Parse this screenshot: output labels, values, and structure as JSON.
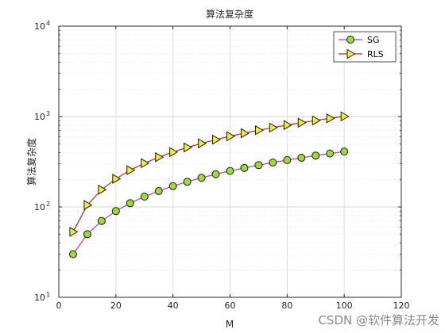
{
  "chart_data": {
    "type": "line",
    "title": "算法复杂度",
    "xlabel": "M",
    "ylabel": "算法复杂度",
    "xlim": [
      0,
      120
    ],
    "ylim": [
      10,
      10000
    ],
    "yscale": "log",
    "grid": true,
    "legend_position": "top-right",
    "x_ticks": [
      "0",
      "20",
      "40",
      "60",
      "80",
      "100",
      "120"
    ],
    "y_ticks": [
      {
        "base": "10",
        "exp": "1"
      },
      {
        "base": "10",
        "exp": "2"
      },
      {
        "base": "10",
        "exp": "3"
      },
      {
        "base": "10",
        "exp": "4"
      }
    ],
    "x": [
      5,
      10,
      15,
      20,
      25,
      30,
      35,
      40,
      45,
      50,
      55,
      60,
      65,
      70,
      75,
      80,
      85,
      90,
      95,
      100
    ],
    "series": [
      {
        "name": "SG",
        "marker": "circle",
        "line_color": "#cc33cc",
        "marker_fill": "#99dd33",
        "values": [
          30,
          50,
          70,
          90,
          110,
          130,
          150,
          170,
          190,
          210,
          230,
          250,
          270,
          290,
          310,
          330,
          350,
          370,
          390,
          410
        ]
      },
      {
        "name": "RLS",
        "marker": "triangle-right",
        "line_color": "#cc2222",
        "marker_fill": "#eeee33",
        "values": [
          53,
          105,
          155,
          205,
          255,
          305,
          355,
          405,
          455,
          505,
          555,
          605,
          655,
          705,
          755,
          805,
          855,
          905,
          955,
          1005
        ]
      }
    ]
  },
  "watermark": "CSDN @软件算法开发"
}
